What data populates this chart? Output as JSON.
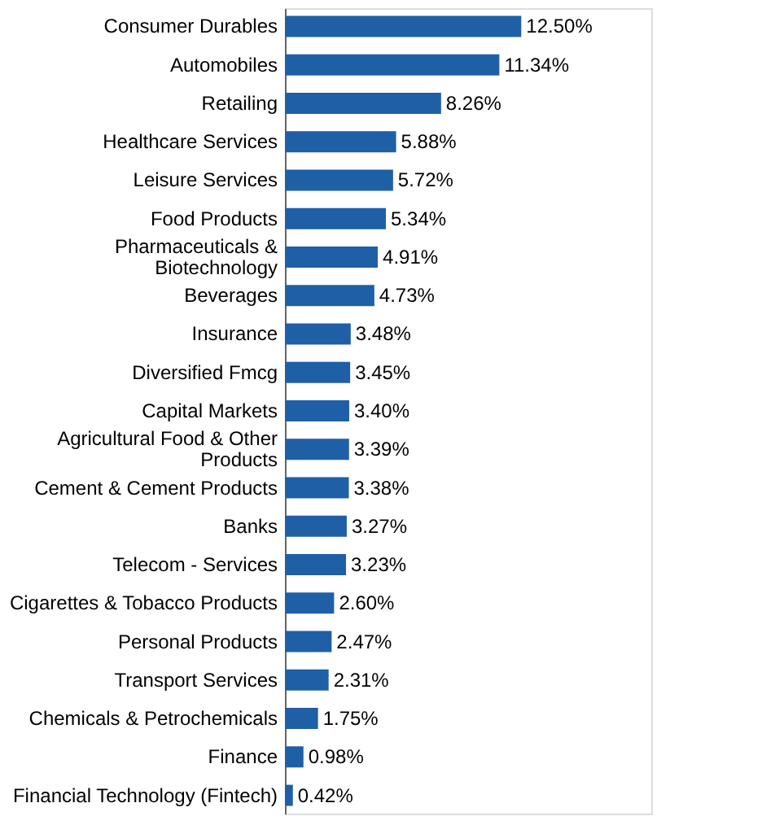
{
  "chart_data": {
    "type": "bar",
    "orientation": "horizontal",
    "categories": [
      "Consumer Durables",
      "Automobiles",
      "Retailing",
      "Healthcare Services",
      "Leisure Services",
      "Food Products",
      "Pharmaceuticals & Biotechnology",
      "Beverages",
      "Insurance",
      "Diversified Fmcg",
      "Capital Markets",
      "Agricultural Food & Other Products",
      "Cement & Cement Products",
      "Banks",
      "Telecom - Services",
      "Cigarettes & Tobacco Products",
      "Personal Products",
      "Transport Services",
      "Chemicals & Petrochemicals",
      "Finance",
      "Financial Technology (Fintech)"
    ],
    "values": [
      12.5,
      11.34,
      8.26,
      5.88,
      5.72,
      5.34,
      4.91,
      4.73,
      3.48,
      3.45,
      3.4,
      3.39,
      3.38,
      3.27,
      3.23,
      2.6,
      2.47,
      2.31,
      1.75,
      0.98,
      0.42
    ],
    "value_labels": [
      "12.50%",
      "11.34%",
      "8.26%",
      "5.88%",
      "5.72%",
      "5.34%",
      "4.91%",
      "4.73%",
      "3.48%",
      "3.45%",
      "3.40%",
      "3.39%",
      "3.38%",
      "3.27%",
      "3.23%",
      "2.60%",
      "2.47%",
      "2.31%",
      "1.75%",
      "0.98%",
      "0.42%"
    ],
    "color": "#1f5fa6"
  }
}
